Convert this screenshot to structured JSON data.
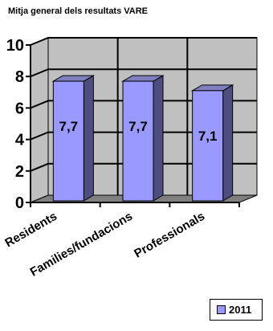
{
  "chart_data": {
    "type": "bar",
    "title": "Mitja general dels resultats VARE",
    "categories": [
      "Residents",
      "Families/fundacions",
      "Professionals"
    ],
    "series": [
      {
        "name": "2011",
        "values": [
          7.7,
          7.7,
          7.1
        ],
        "labels": [
          "7,7",
          "7,7",
          "7,1"
        ]
      }
    ],
    "yticks": [
      "0",
      "2",
      "4",
      "6",
      "8",
      "10"
    ],
    "ylim": [
      0,
      10
    ],
    "xlabel": "",
    "ylabel": "",
    "grid": true,
    "legend": "bottom-right",
    "colors": {
      "bar_front": "#9999ff",
      "bar_side": "#4d4d80",
      "bar_top": "#8080c0",
      "wall": "#c0c0c0",
      "floor": "#808080"
    }
  }
}
